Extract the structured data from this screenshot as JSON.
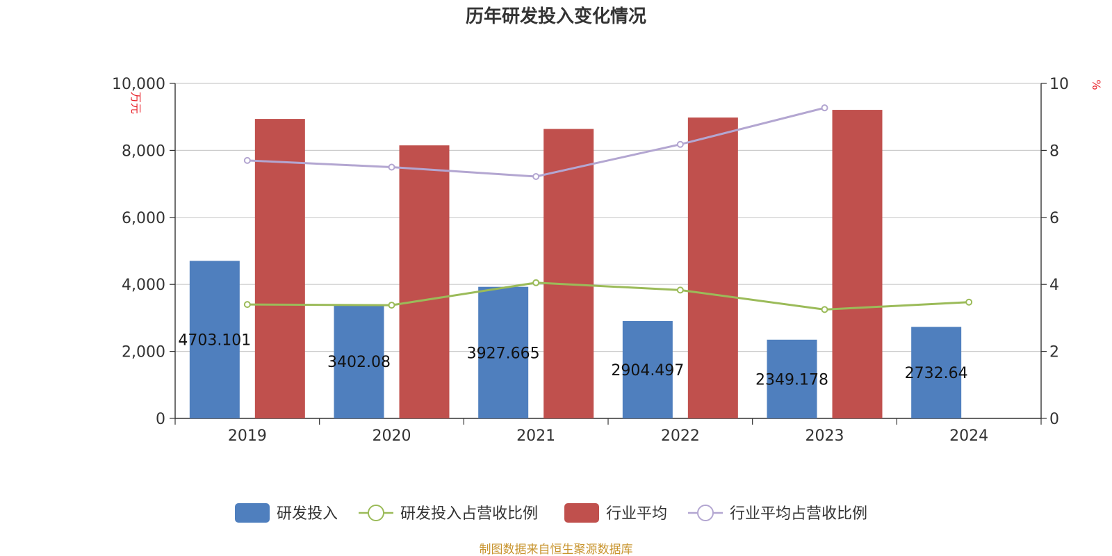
{
  "chart_data": {
    "type": "bar",
    "title": "历年研发投入变化情况",
    "categories": [
      "2019",
      "2020",
      "2021",
      "2022",
      "2023",
      "2024"
    ],
    "y_left": {
      "unit": "万元",
      "ticks": [
        "0",
        "2,000",
        "4,000",
        "6,000",
        "8,000",
        "10,000"
      ],
      "ylim": [
        0,
        10000
      ]
    },
    "y_right": {
      "unit": "%",
      "ticks": [
        "0",
        "2",
        "4",
        "6",
        "8",
        "10"
      ],
      "ylim": [
        0,
        10
      ]
    },
    "series": [
      {
        "name": "研发投入",
        "type": "bar",
        "axis": "left",
        "color": "#4f7fbe",
        "values": [
          4703.101,
          3402.08,
          3927.665,
          2904.497,
          2349.178,
          2732.64
        ],
        "labels": [
          "4703.101",
          "3402.08",
          "3927.665",
          "2904.497",
          "2349.178",
          "2732.64"
        ]
      },
      {
        "name": "研发投入占营收比例",
        "type": "line",
        "axis": "right",
        "color": "#9bbb59",
        "values": [
          3.4,
          3.38,
          4.05,
          3.83,
          3.25,
          3.47
        ]
      },
      {
        "name": "行业平均",
        "type": "bar",
        "axis": "left",
        "color": "#c0504d",
        "values": [
          8940,
          8150,
          8640,
          8980,
          9210,
          null
        ]
      },
      {
        "name": "行业平均占营收比例",
        "type": "line",
        "axis": "right",
        "color": "#b3a6d1",
        "values": [
          7.7,
          7.5,
          7.22,
          8.18,
          9.27,
          null
        ]
      }
    ],
    "grid": true,
    "legend_position": "bottom"
  },
  "source": "制图数据来自恒生聚源数据库"
}
